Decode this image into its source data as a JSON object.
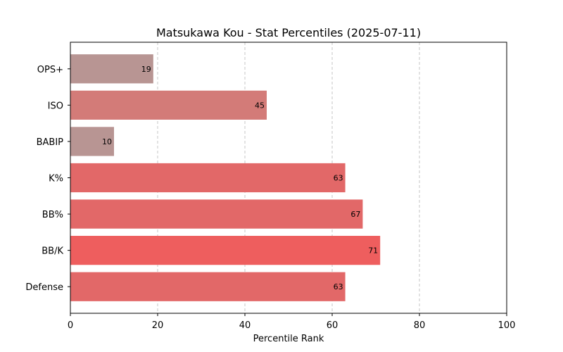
{
  "chart_data": {
    "type": "bar",
    "orientation": "horizontal",
    "title": "Matsukawa Kou - Stat Percentiles (2025-07-11)",
    "xlabel": "Percentile Rank",
    "ylabel": "",
    "xlim": [
      0,
      100
    ],
    "xticks": [
      0,
      20,
      40,
      60,
      80,
      100
    ],
    "grid": "vertical dashed",
    "categories": [
      "OPS+",
      "ISO",
      "BABIP",
      "K%",
      "BB%",
      "BB/K",
      "Defense"
    ],
    "values": [
      19,
      45,
      10,
      63,
      67,
      71,
      63
    ],
    "colors": [
      "#b89593",
      "#d37b78",
      "#b89593",
      "#e26868",
      "#e26868",
      "#ee5e5e",
      "#e26868"
    ]
  }
}
